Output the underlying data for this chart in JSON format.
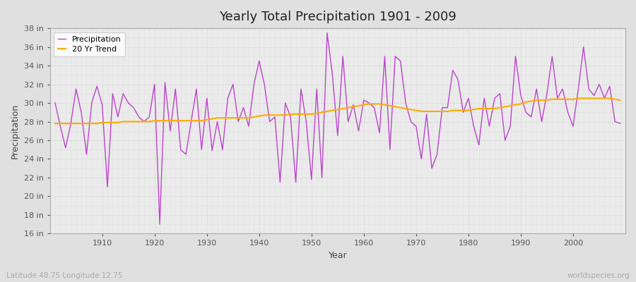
{
  "title": "Yearly Total Precipitation 1901 - 2009",
  "xlabel": "Year",
  "ylabel": "Precipitation",
  "subtitle_left": "Latitude 48.75 Longitude 12.75",
  "subtitle_right": "worldspecies.org",
  "legend_labels": [
    "Precipitation",
    "20 Yr Trend"
  ],
  "precip_color": "#bb44cc",
  "trend_color": "#ffaa00",
  "bg_color": "#e0e0e0",
  "plot_bg_color": "#ebebeb",
  "grid_color": "#d0d0d0",
  "ylim": [
    16,
    38
  ],
  "yticks": [
    16,
    18,
    20,
    22,
    24,
    26,
    28,
    30,
    32,
    34,
    36,
    38
  ],
  "ytick_labels": [
    "16 in",
    "18 in",
    "20 in",
    "22 in",
    "24 in",
    "26 in",
    "28 in",
    "30 in",
    "32 in",
    "34 in",
    "36 in",
    "38 in"
  ],
  "years": [
    1901,
    1902,
    1903,
    1904,
    1905,
    1906,
    1907,
    1908,
    1909,
    1910,
    1911,
    1912,
    1913,
    1914,
    1915,
    1916,
    1917,
    1918,
    1919,
    1920,
    1921,
    1922,
    1923,
    1924,
    1925,
    1926,
    1927,
    1928,
    1929,
    1930,
    1931,
    1932,
    1933,
    1934,
    1935,
    1936,
    1937,
    1938,
    1939,
    1940,
    1941,
    1942,
    1943,
    1944,
    1945,
    1946,
    1947,
    1948,
    1949,
    1950,
    1951,
    1952,
    1953,
    1954,
    1955,
    1956,
    1957,
    1958,
    1959,
    1960,
    1961,
    1962,
    1963,
    1964,
    1965,
    1966,
    1967,
    1968,
    1969,
    1970,
    1971,
    1972,
    1973,
    1974,
    1975,
    1976,
    1977,
    1978,
    1979,
    1980,
    1981,
    1982,
    1983,
    1984,
    1985,
    1986,
    1987,
    1988,
    1989,
    1990,
    1991,
    1992,
    1993,
    1994,
    1995,
    1996,
    1997,
    1998,
    1999,
    2000,
    2001,
    2002,
    2003,
    2004,
    2005,
    2006,
    2007,
    2008,
    2009
  ],
  "precip": [
    30.0,
    27.5,
    25.2,
    27.8,
    31.5,
    29.0,
    24.5,
    30.0,
    31.8,
    29.8,
    21.0,
    31.0,
    28.5,
    31.0,
    30.0,
    29.5,
    28.5,
    28.0,
    28.5,
    32.0,
    17.0,
    32.2,
    27.0,
    31.5,
    25.0,
    24.5,
    28.0,
    31.5,
    25.0,
    30.5,
    24.9,
    28.0,
    25.0,
    30.5,
    32.0,
    28.0,
    29.5,
    27.5,
    32.0,
    34.5,
    32.0,
    28.0,
    28.5,
    21.5,
    30.0,
    28.5,
    21.5,
    31.5,
    28.0,
    21.8,
    31.5,
    22.0,
    37.5,
    33.0,
    26.5,
    35.0,
    28.0,
    29.8,
    27.0,
    30.3,
    30.0,
    29.5,
    26.8,
    35.0,
    25.0,
    35.0,
    34.5,
    30.0,
    28.0,
    27.5,
    24.0,
    28.8,
    23.0,
    24.5,
    29.5,
    29.5,
    33.5,
    32.5,
    29.0,
    30.5,
    27.5,
    25.5,
    30.5,
    27.5,
    30.5,
    31.0,
    26.0,
    27.5,
    35.0,
    30.8,
    29.0,
    28.5,
    31.5,
    28.0,
    31.0,
    35.0,
    30.5,
    31.5,
    29.0,
    27.5,
    31.5,
    36.0,
    31.5,
    30.8,
    32.0,
    30.5,
    31.8,
    28.0,
    27.8
  ],
  "trend": [
    27.8,
    27.8,
    27.8,
    27.8,
    27.8,
    27.8,
    27.8,
    27.8,
    27.8,
    27.9,
    27.9,
    27.9,
    27.9,
    28.0,
    28.0,
    28.0,
    28.0,
    28.0,
    28.0,
    28.1,
    28.1,
    28.1,
    28.1,
    28.1,
    28.1,
    28.1,
    28.1,
    28.1,
    28.1,
    28.2,
    28.3,
    28.4,
    28.4,
    28.4,
    28.4,
    28.4,
    28.4,
    28.4,
    28.5,
    28.6,
    28.7,
    28.7,
    28.7,
    28.7,
    28.7,
    28.8,
    28.8,
    28.8,
    28.8,
    28.8,
    28.9,
    29.0,
    29.1,
    29.2,
    29.3,
    29.4,
    29.5,
    29.6,
    29.7,
    29.8,
    29.9,
    29.9,
    29.9,
    29.8,
    29.7,
    29.6,
    29.5,
    29.4,
    29.3,
    29.2,
    29.1,
    29.1,
    29.1,
    29.1,
    29.1,
    29.1,
    29.2,
    29.2,
    29.2,
    29.2,
    29.3,
    29.4,
    29.4,
    29.4,
    29.4,
    29.5,
    29.6,
    29.7,
    29.8,
    29.9,
    30.1,
    30.2,
    30.3,
    30.3,
    30.3,
    30.4,
    30.4,
    30.4,
    30.4,
    30.4,
    30.5,
    30.5,
    30.5,
    30.5,
    30.5,
    30.5,
    30.5,
    30.4,
    30.3
  ]
}
